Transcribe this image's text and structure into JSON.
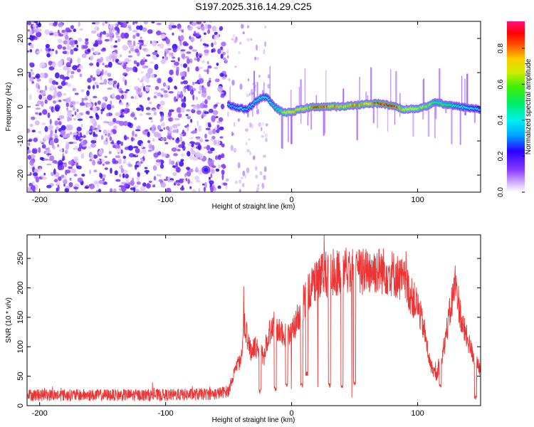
{
  "chart_data": [
    {
      "type": "heatmap",
      "title": "S197.2025.316.14.29.C25",
      "xlabel": "Height of straight line (km)",
      "ylabel": "Frequency (Hz)",
      "xlim": [
        -210,
        150
      ],
      "ylim": [
        -25,
        25
      ],
      "x_ticks": [
        -200,
        -100,
        0,
        100
      ],
      "y_ticks": [
        -20,
        -10,
        0,
        10,
        20
      ],
      "colorbar": {
        "label": "Normalized spectral amplitude",
        "range": [
          0,
          0.95
        ],
        "ticks": [
          0.0,
          0.2,
          0.4,
          0.6,
          0.8
        ]
      },
      "noise_region_km": [
        -210,
        -52
      ],
      "sparse_noise_km": [
        -52,
        -18
      ],
      "ridge": {
        "description": "doppler frequency ridge",
        "x": [
          -50,
          -45,
          -40,
          -35,
          -30,
          -25,
          -20,
          -15,
          -10,
          -5,
          0,
          5,
          10,
          20,
          30,
          40,
          50,
          60,
          70,
          80,
          90,
          100,
          110,
          115,
          120,
          130,
          140,
          150
        ],
        "freq": [
          0.5,
          0,
          -0.5,
          -0.8,
          1,
          2.5,
          3,
          0.5,
          -1,
          -1.8,
          -1.5,
          -1,
          -0.5,
          0,
          0,
          0,
          0.5,
          0.8,
          1,
          0.3,
          -0.8,
          -0.5,
          0.5,
          1.5,
          0.8,
          0.2,
          -0.3,
          -0.8
        ],
        "amplitude": [
          0.4,
          0.35,
          0.45,
          0.4,
          0.45,
          0.5,
          0.45,
          0.5,
          0.55,
          0.7,
          0.8,
          0.85,
          0.75,
          0.9,
          0.85,
          0.8,
          0.85,
          0.8,
          0.9,
          0.95,
          0.75,
          0.7,
          0.65,
          0.55,
          0.6,
          0.5,
          0.45,
          0.4
        ]
      },
      "hotspot": {
        "x": -68,
        "freq": -18.5,
        "amplitude": 0.25
      }
    },
    {
      "type": "line",
      "xlabel": "Height of straight line (km)",
      "ylabel": "SNR (10 * v/v)",
      "xlim": [
        -210,
        150
      ],
      "ylim": [
        0,
        290
      ],
      "x_ticks": [
        -200,
        -100,
        0,
        100
      ],
      "y_ticks": [
        0,
        50,
        100,
        150,
        200,
        250
      ],
      "color": "#ee3333",
      "series": [
        {
          "name": "SNR",
          "x": [
            -210,
            -150,
            -100,
            -60,
            -50,
            -45,
            -40,
            -38,
            -35,
            -32,
            -30,
            -25,
            -22,
            -20,
            -15,
            -10,
            -5,
            0,
            10,
            20,
            30,
            40,
            50,
            60,
            70,
            80,
            90,
            95,
            100,
            105,
            110,
            115,
            120,
            125,
            130,
            135,
            140,
            145,
            150
          ],
          "y": [
            18,
            18,
            18,
            20,
            25,
            60,
            80,
            150,
            110,
            90,
            100,
            95,
            80,
            110,
            140,
            130,
            120,
            120,
            180,
            215,
            225,
            230,
            225,
            230,
            230,
            225,
            210,
            185,
            170,
            130,
            70,
            50,
            90,
            150,
            210,
            140,
            110,
            80,
            60
          ]
        }
      ],
      "dropouts": [
        {
          "x": -25,
          "y": 20
        },
        {
          "x": -13,
          "y": 25
        },
        {
          "x": -4,
          "y": 30
        },
        {
          "x": 8,
          "y": 30
        },
        {
          "x": 12,
          "y": 50
        },
        {
          "x": 30,
          "y": 30
        },
        {
          "x": 40,
          "y": 30
        },
        {
          "x": 50,
          "y": 35
        },
        {
          "x": 118,
          "y": 30
        },
        {
          "x": 146,
          "y": 10
        }
      ]
    }
  ]
}
